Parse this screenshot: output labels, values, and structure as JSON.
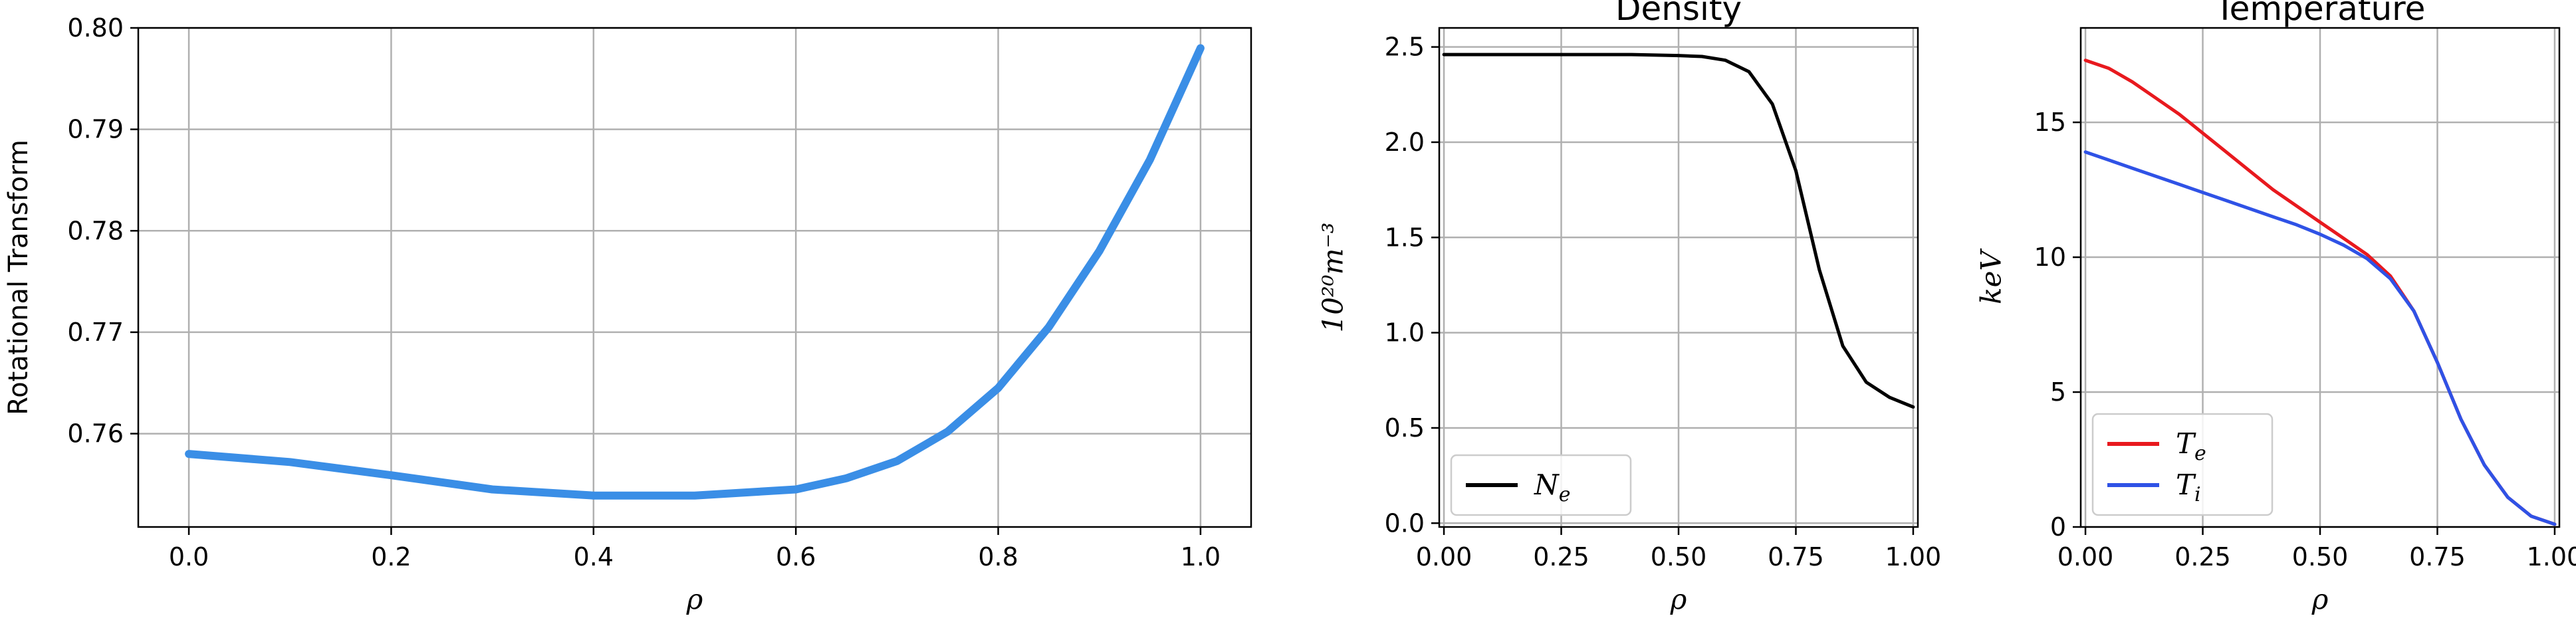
{
  "chart_data": [
    {
      "type": "line",
      "title": "",
      "xlabel": "ρ",
      "ylabel": "Rotational Transform",
      "xlim": [
        -0.05,
        1.05
      ],
      "ylim": [
        0.7508,
        0.8
      ],
      "xticks": [
        "0.0",
        "0.2",
        "0.4",
        "0.6",
        "0.8",
        "1.0"
      ],
      "yticks": [
        "0.76",
        "0.77",
        "0.78",
        "0.79",
        "0.80"
      ],
      "grid": true,
      "series": [
        {
          "name": "",
          "color": "#3a8ee6",
          "x": [
            0.0,
            0.1,
            0.2,
            0.3,
            0.4,
            0.5,
            0.6,
            0.65,
            0.7,
            0.75,
            0.8,
            0.85,
            0.9,
            0.95,
            1.0
          ],
          "y": [
            0.758,
            0.7572,
            0.7559,
            0.7545,
            0.7539,
            0.7539,
            0.7545,
            0.7556,
            0.7573,
            0.7602,
            0.7645,
            0.7705,
            0.778,
            0.787,
            0.798
          ]
        }
      ]
    },
    {
      "type": "line",
      "title": "Density",
      "xlabel": "ρ",
      "ylabel": "10²⁰m⁻³",
      "xlim": [
        -0.01,
        1.01
      ],
      "ylim": [
        -0.02,
        2.6
      ],
      "xticks": [
        "0.00",
        "0.25",
        "0.50",
        "0.75",
        "1.00"
      ],
      "yticks": [
        "0.0",
        "0.5",
        "1.0",
        "1.5",
        "2.0",
        "2.5"
      ],
      "grid": true,
      "legend": "bottom-left",
      "series": [
        {
          "name": "N",
          "subscript": "e",
          "color": "#000000",
          "x": [
            0.0,
            0.1,
            0.2,
            0.3,
            0.4,
            0.5,
            0.55,
            0.6,
            0.65,
            0.7,
            0.75,
            0.8,
            0.85,
            0.9,
            0.95,
            1.0
          ],
          "y": [
            2.46,
            2.46,
            2.46,
            2.46,
            2.46,
            2.455,
            2.45,
            2.43,
            2.37,
            2.2,
            1.85,
            1.33,
            0.93,
            0.74,
            0.66,
            0.61
          ]
        }
      ]
    },
    {
      "type": "line",
      "title": "Temperature",
      "xlabel": "ρ",
      "ylabel": "keV",
      "xlim": [
        -0.01,
        1.01
      ],
      "ylim": [
        0.0,
        18.5
      ],
      "xticks": [
        "0.00",
        "0.25",
        "0.50",
        "0.75",
        "1.00"
      ],
      "yticks": [
        "0",
        "5",
        "10",
        "15"
      ],
      "grid": true,
      "legend": "bottom-left",
      "series": [
        {
          "name": "T",
          "subscript": "e",
          "color": "#e8191e",
          "x": [
            0.0,
            0.05,
            0.1,
            0.15,
            0.2,
            0.25,
            0.3,
            0.35,
            0.4,
            0.45,
            0.5,
            0.55,
            0.6,
            0.65,
            0.7,
            0.75,
            0.8,
            0.85,
            0.9,
            0.95,
            1.0
          ],
          "y": [
            17.3,
            17.0,
            16.5,
            15.9,
            15.3,
            14.6,
            13.9,
            13.2,
            12.5,
            11.9,
            11.3,
            10.7,
            10.1,
            9.3,
            8.0,
            6.1,
            4.0,
            2.3,
            1.1,
            0.4,
            0.1
          ]
        },
        {
          "name": "T",
          "subscript": "i",
          "color": "#2f52e6",
          "x": [
            0.0,
            0.05,
            0.1,
            0.15,
            0.2,
            0.25,
            0.3,
            0.35,
            0.4,
            0.45,
            0.5,
            0.55,
            0.6,
            0.65,
            0.7,
            0.75,
            0.8,
            0.85,
            0.9,
            0.95,
            1.0
          ],
          "y": [
            13.9,
            13.6,
            13.3,
            13.0,
            12.7,
            12.4,
            12.1,
            11.8,
            11.5,
            11.2,
            10.85,
            10.45,
            9.95,
            9.2,
            8.0,
            6.1,
            4.0,
            2.3,
            1.1,
            0.4,
            0.1
          ]
        }
      ]
    }
  ]
}
